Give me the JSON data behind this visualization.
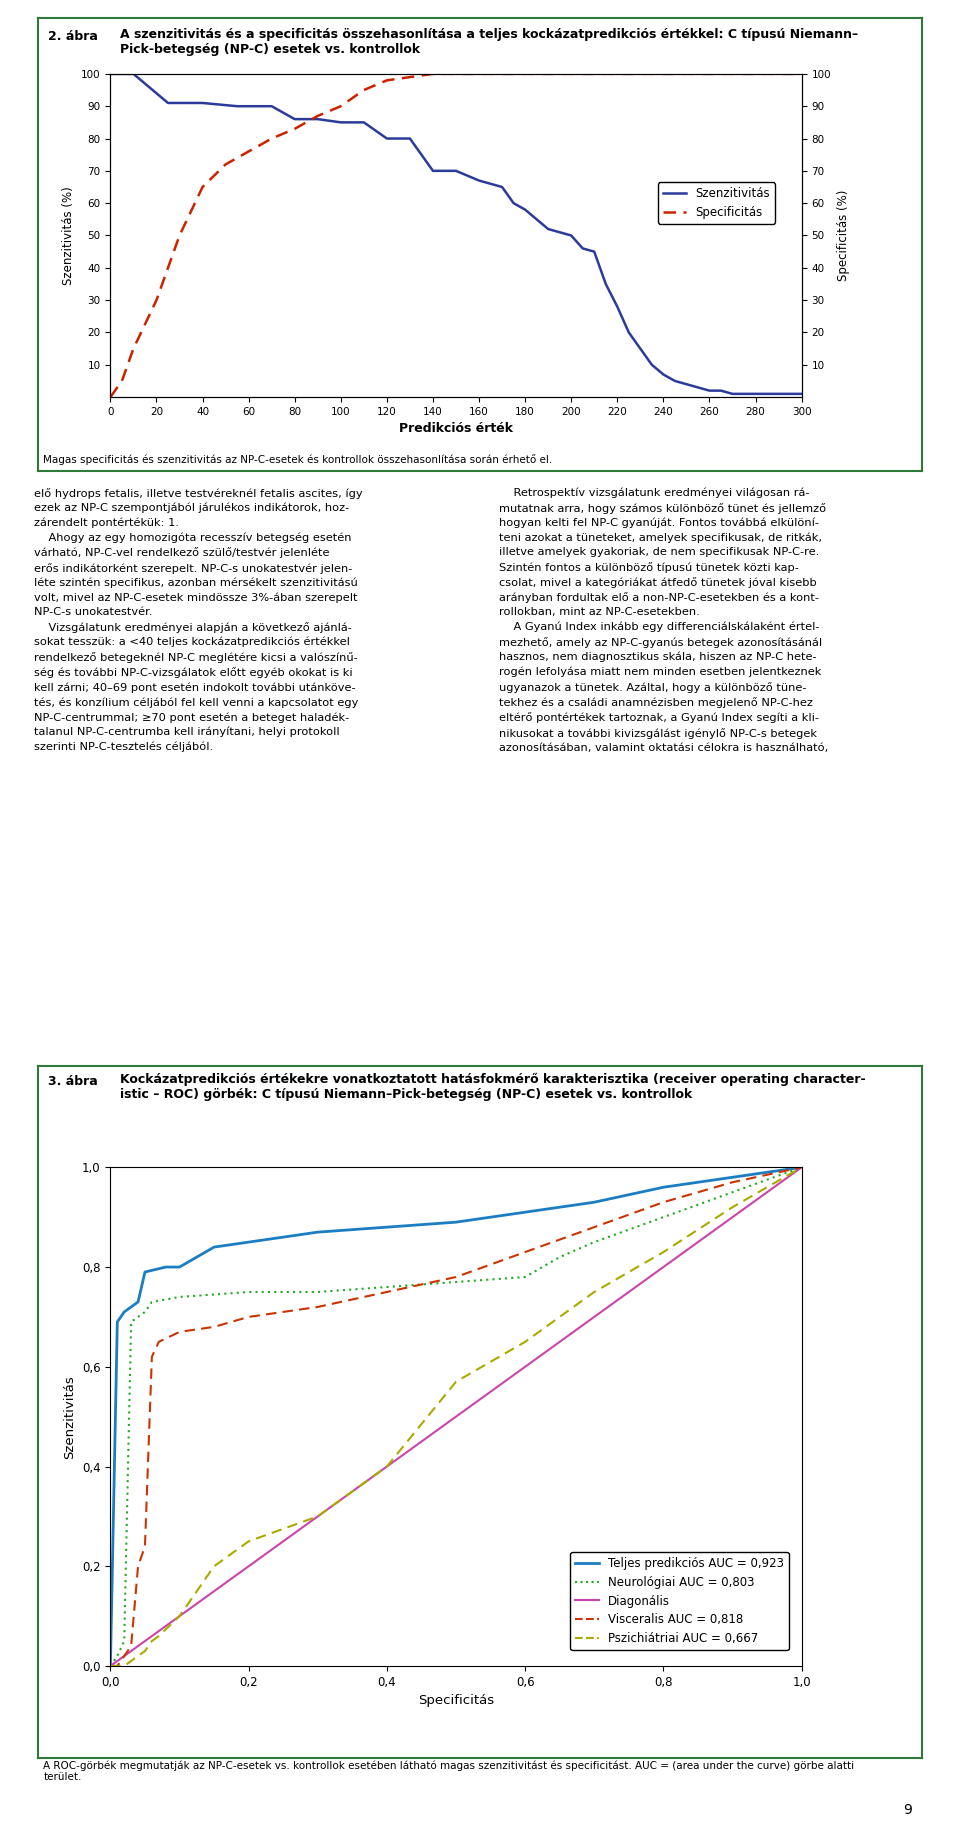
{
  "fig2_title_label": "2. ábra",
  "fig2_title": "A szenzitivitás és a specificitás összehasonlítása a teljes kockázatpredikciós értékkel: C típusú Niemann–\nPick-betegség (NP-C) esetek vs. kontrollok",
  "fig2_xlabel": "Predikciós érték",
  "fig2_ylabel_left": "Szenzitivitás (%)",
  "fig2_ylabel_right": "Specificitás (%)",
  "fig2_caption": "Magas specificitás és szenzitivitás az NP-C-esetek és kontrollok összehasonlítása során érhető el.",
  "fig2_legend": [
    "Szenzitivitás",
    "Specificitás"
  ],
  "fig2_sens_color": "#2B3B9B",
  "fig2_spec_color": "#CC2200",
  "fig2_xlim": [
    0,
    300
  ],
  "fig2_ylim": [
    0,
    100
  ],
  "fig2_xticks": [
    0,
    20,
    40,
    60,
    80,
    100,
    120,
    140,
    160,
    180,
    200,
    220,
    240,
    260,
    280,
    300
  ],
  "fig2_yticks": [
    10,
    20,
    30,
    40,
    50,
    60,
    70,
    80,
    90,
    100
  ],
  "fig3_title_label": "3. ábra",
  "fig3_title": "Kockázatpredikciós értékekre vonatkoztatott hatásfokmérő karakterisztika (receiver operating character-\nistic – ROC) görbék: C típusú Niemann–Pick-betegség (NP-C) esetek vs. kontrollok",
  "fig3_xlabel": "Specificitás",
  "fig3_ylabel": "Szenzitivitás",
  "fig3_caption": "A ROC-görbék megmutatják az NP-C-esetek vs. kontrollok esetében látható magas szenzitivitást és specificitást. AUC = (area under the curve) görbe alatti\nterület.",
  "fig3_legend": [
    "Teljes predikciós AUC = 0,923",
    "Neurológiai AUC = 0,803",
    "Diagonális",
    "Visceralis AUC = 0,818",
    "Pszichiátriai AUC = 0,667"
  ],
  "fig3_colors": [
    "#1B7EC2",
    "#22AA22",
    "#CC44AA",
    "#CC3300",
    "#AAAA00"
  ],
  "page_number": "9",
  "background_color": "#FFFFFF",
  "border_color": "#2D7A3A",
  "text_color": "#000000"
}
